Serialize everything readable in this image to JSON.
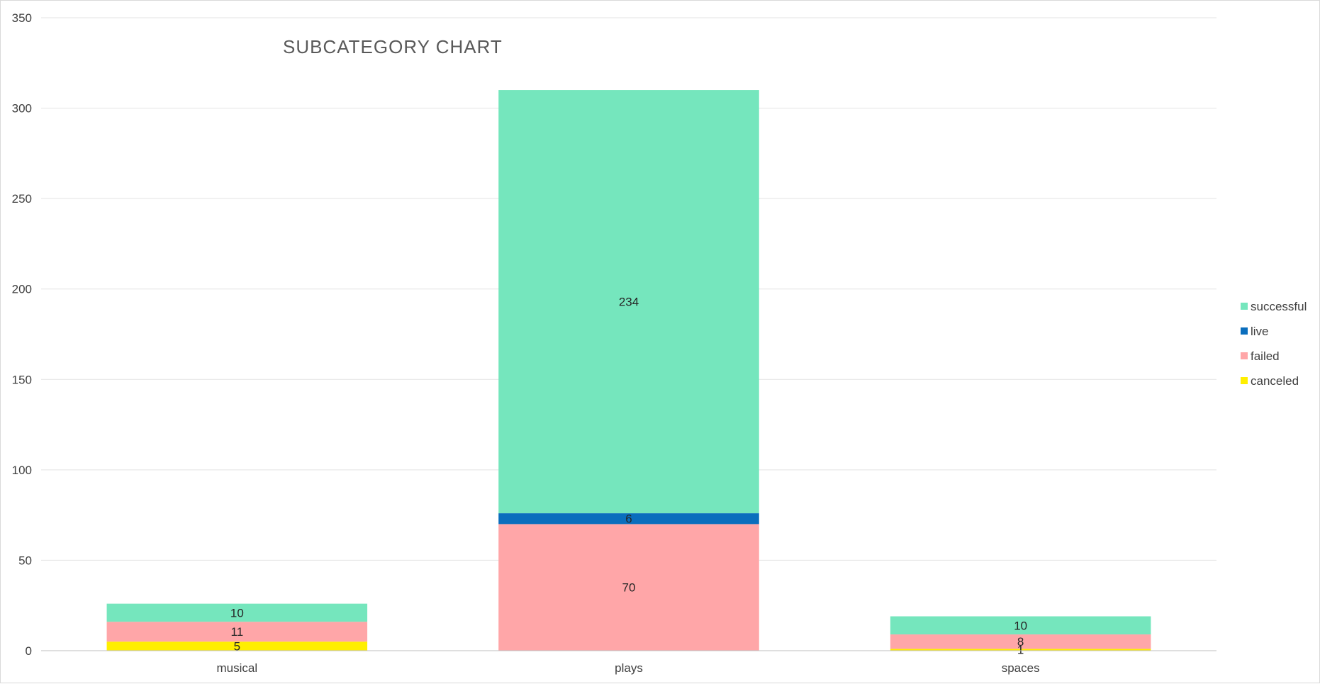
{
  "chart_data": {
    "type": "bar",
    "stacked": true,
    "title": "SUBCATEGORY CHART",
    "xlabel": "",
    "ylabel": "",
    "categories": [
      "musical",
      "plays",
      "spaces"
    ],
    "ylim": [
      0,
      350
    ],
    "yticks": [
      0,
      50,
      100,
      150,
      200,
      250,
      300,
      350
    ],
    "grid": true,
    "legend_position": "right",
    "series": [
      {
        "name": "canceled",
        "color": "#ffef00",
        "values": [
          5,
          0,
          1
        ]
      },
      {
        "name": "failed",
        "color": "#ffa6a8",
        "values": [
          11,
          70,
          8
        ]
      },
      {
        "name": "live",
        "color": "#0a6ebd",
        "values": [
          0,
          6,
          0
        ]
      },
      {
        "name": "successful",
        "color": "#75e6bd",
        "values": [
          10,
          234,
          10
        ]
      }
    ],
    "legend_order": [
      "successful",
      "live",
      "failed",
      "canceled"
    ]
  }
}
